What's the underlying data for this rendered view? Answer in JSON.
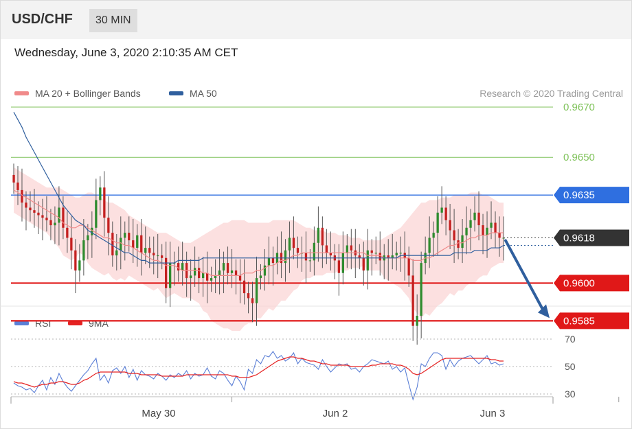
{
  "header": {
    "symbol": "USD/CHF",
    "timeframe": "30 MIN"
  },
  "timestamp": "Wednesday, June 3, 2020 2:10:35 AM CET",
  "legend": {
    "ma20_label": "MA 20 + Bollinger Bands",
    "ma50_label": "MA 50",
    "rsi_label": "RSI",
    "ma9_label": "9MA",
    "ma20_color": "#f08a8a",
    "ma50_color": "#2f5f9e",
    "rsi_color": "#5b7fd6",
    "ma9_color": "#e52222"
  },
  "credit": "Research © 2020 Trading Central",
  "chart_data": [
    {
      "type": "candlestick",
      "title": "USD/CHF",
      "x_ticks": [
        "May 30",
        "Jun 2",
        "Jun 3"
      ],
      "ylim": [
        0.9572,
        0.9688
      ],
      "grid": false,
      "legend_position": "top-left",
      "levels": [
        {
          "value": 0.967,
          "label": "0.9670",
          "kind": "resistance",
          "color": "#7fc25a"
        },
        {
          "value": 0.965,
          "label": "0.9650",
          "kind": "resistance",
          "color": "#7fc25a"
        },
        {
          "value": 0.9635,
          "label": "0.9635",
          "kind": "pivot",
          "color": "#2f6fe0"
        },
        {
          "value": 0.96,
          "label": "0.9600",
          "kind": "support",
          "color": "#e01818"
        },
        {
          "value": 0.9585,
          "label": "0.9585",
          "kind": "support",
          "color": "#e01818"
        }
      ],
      "last_price": {
        "value": 0.9618,
        "label": "0.9618"
      },
      "forecast": {
        "from": 0.9618,
        "to": 0.9585,
        "direction": "down"
      },
      "close": [
        0.964,
        0.9637,
        0.9632,
        0.963,
        0.9629,
        0.9628,
        0.9627,
        0.9626,
        0.9625,
        0.9623,
        0.9624,
        0.963,
        0.9622,
        0.9618,
        0.9613,
        0.9605,
        0.9609,
        0.9617,
        0.9619,
        0.9622,
        0.9633,
        0.9638,
        0.9626,
        0.962,
        0.9611,
        0.9613,
        0.9618,
        0.962,
        0.9617,
        0.9614,
        0.9619,
        0.9612,
        0.9614,
        0.9612,
        0.9611,
        0.9611,
        0.961,
        0.9598,
        0.9608,
        0.9608,
        0.9605,
        0.9608,
        0.9602,
        0.9603,
        0.9606,
        0.9602,
        0.9604,
        0.9601,
        0.9602,
        0.9603,
        0.9605,
        0.9608,
        0.9604,
        0.9605,
        0.9603,
        0.9601,
        0.9596,
        0.9594,
        0.9592,
        0.9602,
        0.9603,
        0.9607,
        0.961,
        0.9608,
        0.9612,
        0.9608,
        0.9613,
        0.9618,
        0.9614,
        0.9612,
        0.9612,
        0.9609,
        0.9609,
        0.9616,
        0.9622,
        0.9615,
        0.9612,
        0.9611,
        0.9609,
        0.9604,
        0.9612,
        0.9615,
        0.9613,
        0.9611,
        0.961,
        0.9605,
        0.9613,
        0.9612,
        0.9612,
        0.9609,
        0.9611,
        0.961,
        0.9611,
        0.9612,
        0.9612,
        0.961,
        0.9603,
        0.9583,
        0.9587,
        0.9608,
        0.9612,
        0.9618,
        0.962,
        0.9628,
        0.963,
        0.9625,
        0.9621,
        0.9617,
        0.9614,
        0.9619,
        0.9622,
        0.9625,
        0.9628,
        0.9623,
        0.9619,
        0.9622,
        0.9624,
        0.962,
        0.9618,
        0.9618
      ],
      "ma50": [
        0.9668,
        0.9665,
        0.9662,
        0.9658,
        0.9655,
        0.9652,
        0.9649,
        0.9646,
        0.9643,
        0.964,
        0.9637,
        0.9634,
        0.9631,
        0.9629,
        0.9627,
        0.9625,
        0.9624,
        0.9623,
        0.9621,
        0.962,
        0.9619,
        0.9618,
        0.9617,
        0.9616,
        0.9615,
        0.9614,
        0.9613,
        0.9612,
        0.9612,
        0.9611,
        0.961,
        0.9609,
        0.9609,
        0.9608,
        0.9608,
        0.9608,
        0.9608,
        0.9608,
        0.9608,
        0.9608,
        0.9609,
        0.9609,
        0.9609,
        0.9609,
        0.9609,
        0.9609,
        0.961,
        0.961,
        0.961,
        0.961,
        0.961,
        0.961,
        0.961,
        0.961,
        0.961,
        0.961,
        0.961,
        0.961,
        0.961,
        0.961,
        0.961,
        0.961,
        0.961,
        0.961,
        0.961,
        0.961,
        0.961,
        0.961,
        0.961,
        0.961,
        0.961,
        0.961,
        0.961,
        0.961,
        0.961,
        0.961,
        0.961,
        0.961,
        0.961,
        0.961,
        0.961,
        0.961,
        0.961,
        0.961,
        0.961,
        0.961,
        0.961,
        0.961,
        0.961,
        0.961,
        0.961,
        0.961,
        0.961,
        0.961,
        0.9611,
        0.9611,
        0.9611,
        0.9611,
        0.9611,
        0.9611,
        0.9611,
        0.9611,
        0.9611,
        0.9611,
        0.9611,
        0.9611,
        0.9611,
        0.9612,
        0.9612,
        0.9612,
        0.9612,
        0.9612,
        0.9613,
        0.9613,
        0.9613,
        0.9613,
        0.9614,
        0.9614,
        0.9614,
        0.9615
      ],
      "ma20": [
        0.9637,
        0.9636,
        0.9635,
        0.9634,
        0.9633,
        0.9632,
        0.9631,
        0.963,
        0.9629,
        0.9628,
        0.9627,
        0.9626,
        0.9624,
        0.9623,
        0.9622,
        0.9622,
        0.9623,
        0.9623,
        0.9622,
        0.9621,
        0.962,
        0.9619,
        0.9618,
        0.9618,
        0.9617,
        0.9616,
        0.9616,
        0.9615,
        0.9615,
        0.9614,
        0.9613,
        0.9612,
        0.9611,
        0.961,
        0.9609,
        0.9609,
        0.9608,
        0.9607,
        0.9607,
        0.9607,
        0.9606,
        0.9605,
        0.9605,
        0.9605,
        0.9605,
        0.9605,
        0.9604,
        0.9604,
        0.9603,
        0.9603,
        0.9603,
        0.9603,
        0.9603,
        0.9603,
        0.9603,
        0.9603,
        0.9604,
        0.9604,
        0.9604,
        0.9605,
        0.9605,
        0.9606,
        0.9607,
        0.9607,
        0.9608,
        0.9609,
        0.9609,
        0.961,
        0.9611,
        0.9611,
        0.9612,
        0.9612,
        0.9612,
        0.9612,
        0.9612,
        0.9612,
        0.9612,
        0.9612,
        0.9612,
        0.9612,
        0.9612,
        0.9612,
        0.9612,
        0.9612,
        0.9612,
        0.9612,
        0.9611,
        0.9611,
        0.9611,
        0.9611,
        0.961,
        0.961,
        0.961,
        0.961,
        0.961,
        0.961,
        0.961,
        0.9609,
        0.9609,
        0.9609,
        0.961,
        0.961,
        0.9611,
        0.9612,
        0.9613,
        0.9614,
        0.9615,
        0.9615,
        0.9616,
        0.9616,
        0.9617,
        0.9618,
        0.9618,
        0.9619,
        0.9619,
        0.9619,
        0.962,
        0.962,
        0.962,
        0.962
      ],
      "band_upper": [
        0.9646,
        0.9645,
        0.9644,
        0.9643,
        0.9642,
        0.9641,
        0.964,
        0.9639,
        0.9638,
        0.9638,
        0.9638,
        0.9638,
        0.9637,
        0.9636,
        0.9635,
        0.9634,
        0.9634,
        0.9635,
        0.9636,
        0.9636,
        0.9635,
        0.9634,
        0.9633,
        0.9632,
        0.9632,
        0.9631,
        0.963,
        0.9629,
        0.9627,
        0.9626,
        0.9625,
        0.9624,
        0.9623,
        0.9622,
        0.9621,
        0.962,
        0.962,
        0.962,
        0.9619,
        0.9618,
        0.9617,
        0.9616,
        0.9616,
        0.9616,
        0.9617,
        0.9618,
        0.9619,
        0.962,
        0.9621,
        0.9622,
        0.9623,
        0.9624,
        0.9624,
        0.9625,
        0.9625,
        0.9625,
        0.9625,
        0.9624,
        0.9624,
        0.9624,
        0.9624,
        0.9624,
        0.9624,
        0.9625,
        0.9625,
        0.9625,
        0.9625,
        0.9625,
        0.9625,
        0.9624,
        0.9623,
        0.9622,
        0.9622,
        0.9621,
        0.9621,
        0.9621,
        0.962,
        0.962,
        0.962,
        0.9619,
        0.9619,
        0.9619,
        0.9618,
        0.9618,
        0.9618,
        0.9617,
        0.9617,
        0.9617,
        0.9617,
        0.9617,
        0.9618,
        0.9619,
        0.962,
        0.9621,
        0.9622,
        0.9624,
        0.9626,
        0.9628,
        0.963,
        0.9632,
        0.9632,
        0.9633,
        0.9633,
        0.9633,
        0.9634,
        0.9634,
        0.9634,
        0.9635,
        0.9635,
        0.9635,
        0.9635,
        0.9636,
        0.9636,
        0.9636,
        0.9635,
        0.9635,
        0.9634,
        0.9633,
        0.9632,
        0.9632
      ],
      "band_lower": [
        0.9628,
        0.9627,
        0.9626,
        0.9625,
        0.9624,
        0.9623,
        0.9622,
        0.9621,
        0.962,
        0.9618,
        0.9616,
        0.9614,
        0.9611,
        0.961,
        0.9609,
        0.961,
        0.9612,
        0.9611,
        0.9608,
        0.9606,
        0.9605,
        0.9604,
        0.9603,
        0.9604,
        0.9602,
        0.9601,
        0.9602,
        0.9601,
        0.9603,
        0.9602,
        0.9601,
        0.96,
        0.9599,
        0.9598,
        0.9597,
        0.9598,
        0.9596,
        0.9594,
        0.9595,
        0.9596,
        0.9595,
        0.9594,
        0.9594,
        0.9594,
        0.9593,
        0.9592,
        0.9589,
        0.9588,
        0.9585,
        0.9584,
        0.9583,
        0.9582,
        0.9582,
        0.9581,
        0.9581,
        0.9581,
        0.9583,
        0.9584,
        0.9584,
        0.9586,
        0.9586,
        0.9588,
        0.959,
        0.9589,
        0.9591,
        0.9593,
        0.9593,
        0.9595,
        0.9597,
        0.9598,
        0.9601,
        0.9602,
        0.9602,
        0.9603,
        0.9603,
        0.9603,
        0.9604,
        0.9604,
        0.9604,
        0.9605,
        0.9605,
        0.9605,
        0.9606,
        0.9606,
        0.9606,
        0.9607,
        0.9605,
        0.9605,
        0.9605,
        0.9605,
        0.9602,
        0.9601,
        0.96,
        0.9599,
        0.9598,
        0.9596,
        0.9594,
        0.959,
        0.9588,
        0.9586,
        0.9588,
        0.9587,
        0.9589,
        0.9591,
        0.9592,
        0.9594,
        0.9596,
        0.9595,
        0.9597,
        0.9597,
        0.9599,
        0.96,
        0.96,
        0.9602,
        0.9603,
        0.9603,
        0.9606,
        0.9607,
        0.9608,
        0.9608
      ]
    },
    {
      "type": "line",
      "title": "RSI",
      "x_ticks": [
        "May 30",
        "Jun 2",
        "Jun 3"
      ],
      "y_ticks": [
        "70",
        "50",
        "30"
      ],
      "ylim": [
        22,
        78
      ],
      "grid": true,
      "legend_position": "top-left",
      "series": [
        {
          "name": "RSI",
          "values": [
            38,
            36,
            35,
            33,
            34,
            31,
            36,
            40,
            33,
            42,
            37,
            45,
            39,
            35,
            32,
            36,
            40,
            44,
            47,
            52,
            56,
            40,
            44,
            38,
            47,
            49,
            45,
            50,
            42,
            48,
            40,
            47,
            44,
            43,
            41,
            45,
            43,
            40,
            44,
            42,
            45,
            43,
            47,
            41,
            45,
            43,
            44,
            49,
            43,
            41,
            47,
            45,
            40,
            36,
            43,
            39,
            33,
            48,
            45,
            55,
            52,
            58,
            57,
            61,
            56,
            58,
            54,
            56,
            60,
            52,
            56,
            53,
            52,
            51,
            48,
            55,
            50,
            46,
            49,
            52,
            51,
            52,
            48,
            49,
            46,
            50,
            52,
            55,
            54,
            53,
            52,
            54,
            48,
            50,
            46,
            49,
            37,
            26,
            35,
            52,
            50,
            56,
            60,
            60,
            58,
            48,
            55,
            50,
            54,
            56,
            57,
            58,
            55,
            52,
            55,
            58,
            52,
            53,
            51,
            52
          ]
        },
        {
          "name": "9MA",
          "values": [
            39,
            38,
            38,
            37,
            36,
            35,
            36,
            37,
            37,
            38,
            38,
            39,
            39,
            38,
            37,
            37,
            38,
            40,
            41,
            43,
            45,
            46,
            46,
            46,
            46,
            46,
            46,
            46,
            45,
            45,
            45,
            44,
            44,
            44,
            44,
            44,
            43,
            43,
            43,
            43,
            43,
            43,
            44,
            44,
            44,
            44,
            44,
            44,
            44,
            44,
            44,
            44,
            44,
            43,
            43,
            42,
            42,
            42,
            43,
            44,
            46,
            48,
            50,
            52,
            54,
            55,
            56,
            57,
            57,
            56,
            56,
            55,
            54,
            54,
            53,
            52,
            52,
            51,
            51,
            51,
            51,
            51,
            50,
            50,
            50,
            50,
            50,
            51,
            51,
            52,
            52,
            52,
            52,
            51,
            51,
            50,
            48,
            45,
            44,
            45,
            47,
            49,
            51,
            53,
            55,
            56,
            56,
            56,
            56,
            56,
            56,
            56,
            56,
            56,
            56,
            56,
            55,
            55,
            54,
            54
          ]
        }
      ]
    }
  ]
}
